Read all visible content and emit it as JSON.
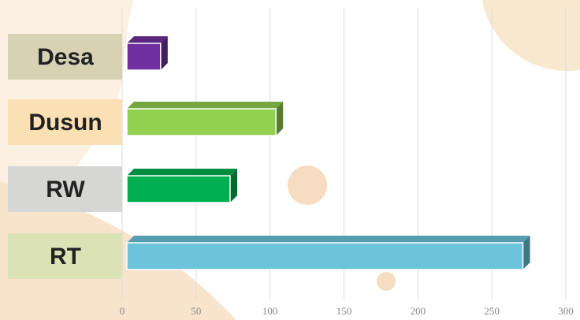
{
  "chart_data": {
    "type": "bar3d",
    "orientation": "horizontal",
    "categories": [
      "Desa",
      "Dusun",
      "RW",
      "RT"
    ],
    "values": [
      26,
      104,
      73,
      271
    ],
    "colors": [
      "#7030a0",
      "#92d050",
      "#00b050",
      "#6cc4dc"
    ],
    "label_backgrounds": [
      "#d8d2b4",
      "#fbe0b4",
      "#d6d6d4",
      "#dbe2b6"
    ],
    "xlim": [
      0,
      300
    ],
    "xticks": [
      0,
      50,
      100,
      150,
      200,
      250,
      300
    ],
    "grid": true
  }
}
